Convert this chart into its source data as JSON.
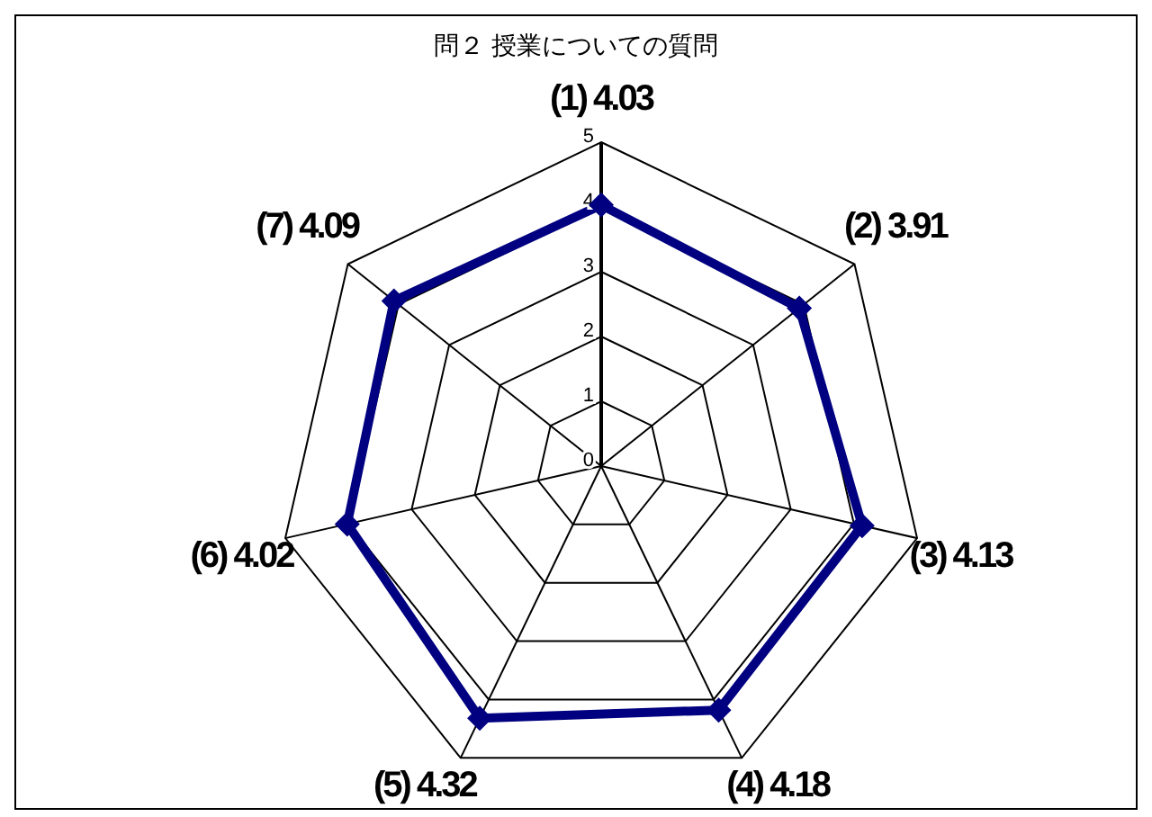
{
  "chart_data": {
    "type": "radar",
    "title": "問２ 授業についての質問",
    "categories": [
      "(1) 4.03",
      "(2) 3.91",
      "(3) 4.13",
      "(4) 4.18",
      "(5) 4.32",
      "(6) 4.02",
      "(7) 4.09"
    ],
    "series": [
      {
        "color": "#000080",
        "values": [
          4.03,
          3.91,
          4.13,
          4.18,
          4.32,
          4.02,
          4.09
        ]
      }
    ],
    "ylim": [
      0,
      5
    ],
    "yticks": [
      0,
      1,
      2,
      3,
      4,
      5
    ],
    "marker": "diamond",
    "line_style": "solid",
    "grid": true,
    "legend": false
  }
}
